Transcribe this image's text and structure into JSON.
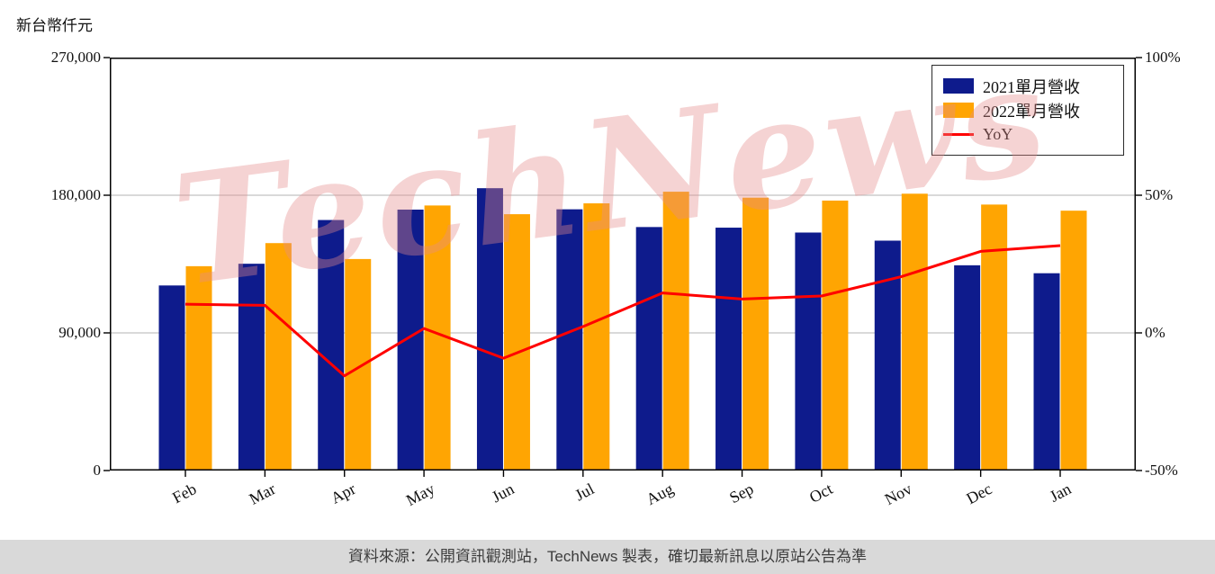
{
  "unit_label": "新台幣仟元",
  "watermark": "TechNews",
  "footer": {
    "text": "資料來源：公開資訊觀測站，TechNews 製表，確切最新訊息以原站公告為準"
  },
  "legend": [
    {
      "label": "2021單月營收",
      "type": "box",
      "color": "#0e1b8c"
    },
    {
      "label": "2022單月營收",
      "type": "box",
      "color": "#ffa502"
    },
    {
      "label": "YoY",
      "type": "line",
      "color": "#ff0000"
    }
  ],
  "chart_data": {
    "type": "bar",
    "title": "",
    "categories": [
      "Feb",
      "Mar",
      "Apr",
      "May",
      "Jun",
      "Jul",
      "Aug",
      "Sep",
      "Oct",
      "Nov",
      "Dec",
      "Jan"
    ],
    "series": [
      {
        "name": "2021單月營收",
        "type": "bar",
        "axis": "left",
        "color": "#0e1b8c",
        "values": [
          121000,
          135200,
          163800,
          170600,
          184600,
          170800,
          159200,
          158800,
          155600,
          150300,
          134200,
          129000
        ]
      },
      {
        "name": "2022單月營收",
        "type": "bar",
        "axis": "left",
        "color": "#ffa502",
        "values": [
          133600,
          148700,
          138300,
          173300,
          167600,
          174700,
          182300,
          178400,
          176500,
          181000,
          173900,
          169900
        ]
      },
      {
        "name": "YoY",
        "type": "line",
        "axis": "right",
        "color": "#ff0000",
        "values": [
          10.4,
          10.0,
          -15.6,
          1.6,
          -9.2,
          2.3,
          14.5,
          12.3,
          13.4,
          20.4,
          29.6,
          31.7
        ]
      }
    ],
    "left_axis": {
      "label": "新台幣仟元",
      "min": 0,
      "max": 270000,
      "ticks": [
        0,
        90000,
        180000,
        270000
      ],
      "tick_labels": [
        "0",
        "90,000",
        "180,000",
        "270,000"
      ]
    },
    "right_axis": {
      "label": "",
      "min": -50,
      "max": 100,
      "ticks": [
        -50,
        0,
        50,
        100
      ],
      "tick_labels": [
        "-50%",
        "0%",
        "50%",
        "100%"
      ]
    },
    "grid": "horizontal",
    "legend_position": "upper-right"
  }
}
